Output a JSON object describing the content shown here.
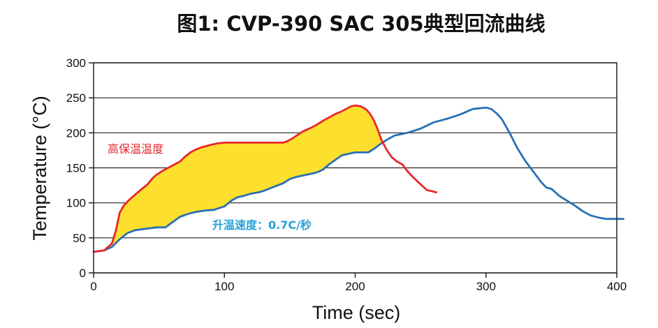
{
  "chart_data": {
    "type": "line",
    "title": "图1: CVP-390 SAC 305典型回流曲线",
    "xlabel": "Time (sec)",
    "ylabel": "Temperature (°C)",
    "xlim": [
      0,
      400
    ],
    "ylim": [
      0,
      300
    ],
    "x_ticks": [
      "0",
      "100",
      "200",
      "300",
      "400"
    ],
    "y_ticks": [
      "0",
      "50",
      "100",
      "150",
      "200",
      "250",
      "300"
    ],
    "grid": "horizontal",
    "series": [
      {
        "color": "#e8262b",
        "x": [
          0,
          8,
          14,
          17,
          20,
          23,
          27,
          32,
          37,
          41,
          45,
          48,
          52,
          57,
          62,
          66,
          70,
          74,
          78,
          82,
          86,
          90,
          95,
          100,
          110,
          120,
          130,
          140,
          145,
          148,
          152,
          156,
          160,
          166,
          171,
          176,
          181,
          185,
          189,
          193,
          197,
          200,
          204,
          208,
          211,
          214,
          217,
          220,
          224,
          228,
          232,
          236,
          240,
          244,
          248,
          252,
          255,
          258,
          262
        ],
        "y": [
          30,
          32,
          42,
          60,
          86,
          96,
          104,
          112,
          120,
          126,
          135,
          140,
          145,
          150,
          155,
          159,
          166,
          172,
          176,
          179,
          181,
          183,
          185,
          186,
          186,
          186,
          186,
          186,
          186,
          188,
          192,
          197,
          202,
          207,
          212,
          218,
          223,
          227,
          230,
          234,
          238,
          239,
          238,
          234,
          228,
          219,
          206,
          190,
          176,
          165,
          159,
          155,
          145,
          137,
          130,
          123,
          118,
          117,
          115
        ]
      },
      {
        "color": "#2970b3",
        "x": [
          0,
          8,
          14,
          20,
          26,
          32,
          40,
          48,
          55,
          60,
          66,
          72,
          78,
          85,
          92,
          100,
          106,
          110,
          115,
          120,
          126,
          130,
          138,
          145,
          150,
          155,
          160,
          165,
          170,
          175,
          180,
          186,
          190,
          195,
          200,
          210,
          215,
          220,
          225,
          230,
          235,
          240,
          250,
          260,
          270,
          280,
          290,
          300,
          304,
          308,
          312,
          318,
          324,
          330,
          336,
          342,
          346,
          350,
          356,
          362,
          368,
          374,
          380,
          386,
          392,
          400,
          405
        ],
        "y": [
          30,
          32,
          37,
          48,
          57,
          61,
          63,
          65,
          65,
          72,
          80,
          84,
          87,
          89,
          90,
          95,
          104,
          108,
          110,
          113,
          115,
          117,
          123,
          128,
          134,
          137,
          139,
          141,
          143,
          147,
          155,
          163,
          168,
          170,
          172,
          172,
          178,
          185,
          191,
          196,
          198,
          200,
          206,
          215,
          220,
          226,
          234,
          236,
          234,
          228,
          220,
          200,
          178,
          160,
          145,
          130,
          122,
          120,
          110,
          103,
          96,
          88,
          82,
          79,
          77,
          77,
          77
        ]
      }
    ],
    "fill_between": {
      "color": "#fddf2e"
    },
    "annotations": [
      {
        "text": "高保温温度",
        "color": "#e8262b"
      },
      {
        "text": "升温速度：0.7C/秒",
        "color": "#2aa1d6"
      }
    ]
  }
}
